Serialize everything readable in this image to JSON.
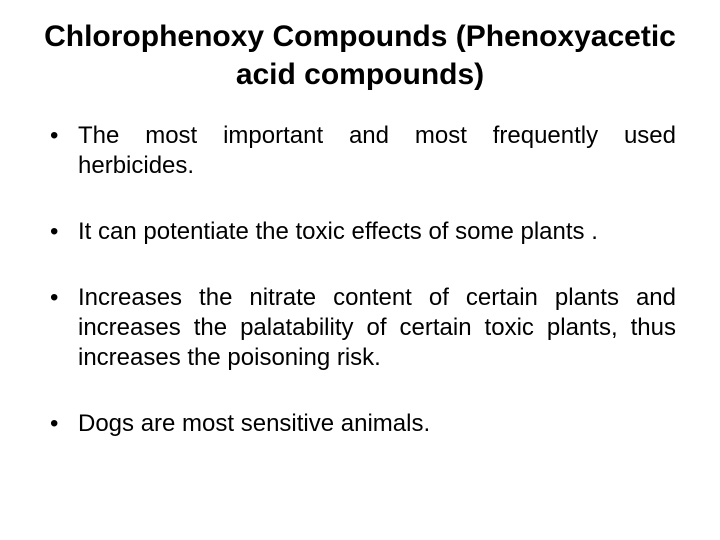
{
  "slide": {
    "title_bold": "Chlorophenoxy Compounds",
    "title_rest": " (Phenoxyacetic acid compounds)",
    "title_fontsize": 30,
    "title_color": "#000000",
    "bullets": [
      "The most important and most frequently used herbicides.",
      "It can potentiate the toxic effects of some plants .",
      "Increases the nitrate content of certain plants and increases the palatability of certain toxic plants, thus increases the poisoning risk.",
      "Dogs are most sensitive animals."
    ],
    "bullet_fontsize": 24,
    "bullet_color": "#000000",
    "background_color": "#ffffff",
    "font_family": "Comic Sans MS"
  }
}
